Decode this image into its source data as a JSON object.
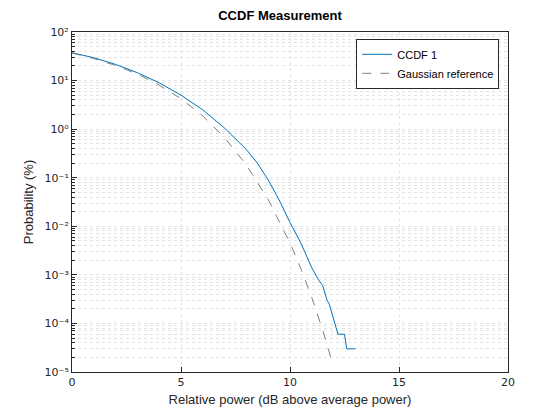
{
  "chart_data": {
    "type": "line",
    "title": "CCDF Measurement",
    "x_label": "Relative power (dB above average power)",
    "y_label": "Probability (%)",
    "log": "y",
    "grid": true,
    "legend": "northeast",
    "xlim": [
      0,
      20
    ],
    "xticks": [
      0,
      5,
      10,
      15,
      20
    ],
    "ylim": [
      1e-05,
      100
    ],
    "yticks": [
      {
        "value": 1e-05,
        "label": "10⁻⁵"
      },
      {
        "value": 0.0001,
        "label": "10⁻⁴"
      },
      {
        "value": 0.001,
        "label": "10⁻³"
      },
      {
        "value": 0.01,
        "label": "10⁻²"
      },
      {
        "value": 0.1,
        "label": "10⁻¹"
      },
      {
        "value": 1,
        "label": "10⁰"
      },
      {
        "value": 10,
        "label": "10¹"
      },
      {
        "value": 100,
        "label": "10²"
      }
    ],
    "series": [
      {
        "name": "CCDF 1",
        "color": "#0072bd",
        "line_style": "solid",
        "x": [
          0,
          1,
          2,
          3,
          4,
          5,
          6,
          7,
          8,
          8.5,
          9,
          9.5,
          10,
          10.5,
          11,
          11.3,
          11.5,
          11.7,
          11.8,
          12.0,
          12.2,
          12.5,
          12.6,
          13.0
        ],
        "values": [
          37.5,
          29.5,
          21.5,
          14.5,
          9,
          5.0,
          2.5,
          1.05,
          0.38,
          0.2,
          0.09,
          0.035,
          0.012,
          0.0045,
          0.0014,
          0.0008,
          0.0006,
          0.0003,
          0.00025,
          0.00012,
          6e-05,
          6e-05,
          3e-05,
          3e-05
        ]
      },
      {
        "name": "Gaussian reference",
        "color": "#808080",
        "line_style": "dash",
        "x": [
          0,
          1,
          2,
          3,
          4,
          5,
          6,
          7,
          8,
          9,
          10,
          10.5,
          11,
          11.5,
          11.95
        ],
        "values": [
          36.8,
          28.4,
          20.5,
          13.6,
          8.11,
          4.23,
          1.87,
          0.666,
          0.182,
          0.0355,
          0.00454,
          0.00134,
          0.00034,
          7.3e-05,
          1.5e-05
        ]
      }
    ]
  }
}
